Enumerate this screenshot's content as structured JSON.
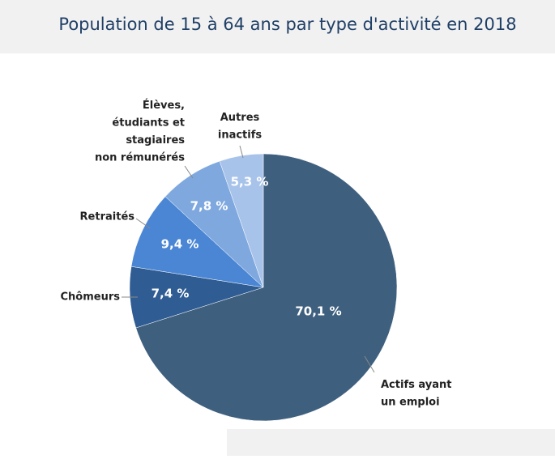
{
  "chart_data": {
    "type": "pie",
    "title": "Population de 15 à 64 ans par type d'activité en 2018",
    "categories": [
      "Actifs ayant\nun emploi",
      "Chômeurs",
      "Retraités",
      "Élèves,\nétudiants et\nstagiaires\nnon rémunérés",
      "Autres\ninactifs"
    ],
    "values": [
      70.1,
      7.4,
      9.4,
      7.8,
      5.3
    ],
    "value_labels": [
      "70,1 %",
      "7,4 %",
      "9,4 %",
      "7,8 %",
      "5,3 %"
    ],
    "colors": [
      "#3e5f7e",
      "#2f5c93",
      "#4b86d4",
      "#7fa8df",
      "#a8c3ea"
    ]
  }
}
